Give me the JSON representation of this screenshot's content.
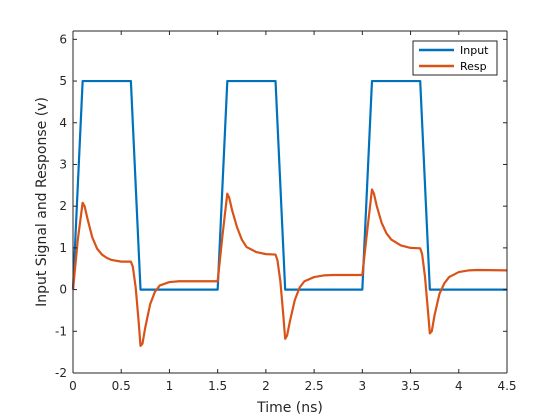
{
  "chart_data": {
    "type": "line",
    "title": "",
    "xlabel": "Time (ns)",
    "ylabel": "Input Signal and Response (v)",
    "xlim": [
      0,
      4.5
    ],
    "ylim": [
      -2,
      6.2
    ],
    "xticks": [
      0,
      0.5,
      1,
      1.5,
      2,
      2.5,
      3,
      3.5,
      4,
      4.5
    ],
    "xtick_labels": [
      "0",
      "0.5",
      "1",
      "1.5",
      "2",
      "2.5",
      "3",
      "3.5",
      "4",
      "4.5"
    ],
    "yticks": [
      -2,
      -1,
      0,
      1,
      2,
      3,
      4,
      5,
      6
    ],
    "ytick_labels": [
      "-2",
      "-1",
      "0",
      "1",
      "2",
      "3",
      "4",
      "5",
      "6"
    ],
    "grid": false,
    "legend_position": "top-right",
    "series": [
      {
        "name": "Input",
        "color": "#0072BD",
        "x": [
          0,
          0.1,
          0.6,
          0.7,
          1.5,
          1.6,
          2.1,
          2.2,
          3.0,
          3.1,
          3.6,
          3.7,
          4.5
        ],
        "y": [
          0,
          5,
          5,
          0,
          0,
          5,
          5,
          0,
          0,
          5,
          5,
          0,
          0
        ]
      },
      {
        "name": "Resp",
        "color": "#D95319",
        "x": [
          0,
          0.05,
          0.1,
          0.12,
          0.15,
          0.2,
          0.25,
          0.3,
          0.35,
          0.4,
          0.5,
          0.6,
          0.62,
          0.65,
          0.68,
          0.7,
          0.72,
          0.75,
          0.8,
          0.85,
          0.9,
          1.0,
          1.1,
          1.2,
          1.5,
          1.55,
          1.6,
          1.62,
          1.65,
          1.7,
          1.75,
          1.8,
          1.9,
          2.0,
          2.1,
          2.12,
          2.15,
          2.18,
          2.2,
          2.22,
          2.25,
          2.3,
          2.35,
          2.4,
          2.5,
          2.6,
          2.7,
          3.0,
          3.05,
          3.1,
          3.12,
          3.15,
          3.2,
          3.25,
          3.3,
          3.4,
          3.5,
          3.6,
          3.62,
          3.65,
          3.68,
          3.7,
          3.72,
          3.75,
          3.8,
          3.85,
          3.9,
          4.0,
          4.1,
          4.2,
          4.5
        ],
        "y": [
          0,
          1.2,
          2.08,
          2.0,
          1.7,
          1.25,
          0.98,
          0.84,
          0.76,
          0.71,
          0.67,
          0.67,
          0.55,
          0.05,
          -0.75,
          -1.35,
          -1.3,
          -0.9,
          -0.35,
          -0.05,
          0.1,
          0.18,
          0.2,
          0.2,
          0.2,
          1.3,
          2.3,
          2.2,
          1.9,
          1.5,
          1.2,
          1.02,
          0.9,
          0.85,
          0.84,
          0.7,
          0.2,
          -0.6,
          -1.18,
          -1.1,
          -0.75,
          -0.25,
          0.05,
          0.2,
          0.3,
          0.34,
          0.35,
          0.35,
          1.4,
          2.4,
          2.3,
          2.0,
          1.6,
          1.35,
          1.2,
          1.06,
          1.0,
          0.99,
          0.85,
          0.3,
          -0.5,
          -1.05,
          -1.0,
          -0.6,
          -0.1,
          0.15,
          0.3,
          0.42,
          0.46,
          0.47,
          0.46
        ]
      }
    ]
  }
}
